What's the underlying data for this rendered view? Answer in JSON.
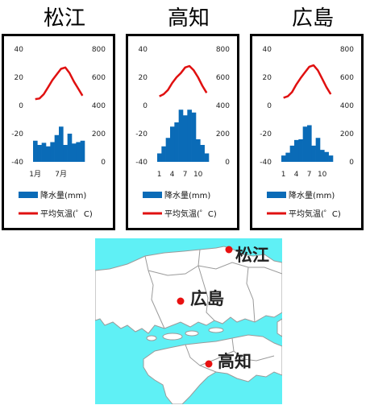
{
  "chart_data": [
    {
      "type": "bar+line",
      "title": "松江",
      "categories": [
        "1",
        "2",
        "3",
        "4",
        "5",
        "6",
        "7",
        "8",
        "9",
        "10",
        "11",
        "12"
      ],
      "x_tick_labels": [
        "1月",
        "7月"
      ],
      "series": [
        {
          "name": "降水量(mm)",
          "type": "bar",
          "axis": "right",
          "values": [
            150,
            120,
            135,
            110,
            140,
            190,
            250,
            120,
            200,
            130,
            140,
            150
          ]
        },
        {
          "name": "平均気温(゜C)",
          "type": "line",
          "axis": "left",
          "values": [
            4.5,
            5,
            8,
            13,
            18,
            22,
            26,
            27,
            23,
            17,
            12,
            7
          ]
        }
      ],
      "y_left": {
        "ticks": [
          40,
          20,
          0,
          -20,
          -40
        ],
        "range": [
          -40,
          40
        ]
      },
      "y_right": {
        "ticks": [
          800,
          600,
          400,
          200,
          0
        ],
        "range": [
          0,
          800
        ]
      },
      "legend": [
        "降水量(mm)",
        "平均気温(゜C)"
      ],
      "legend_position": "bottom"
    },
    {
      "type": "bar+line",
      "title": "高知",
      "categories": [
        "1",
        "2",
        "3",
        "4",
        "5",
        "6",
        "7",
        "8",
        "9",
        "10",
        "11",
        "12"
      ],
      "x_tick_labels": [
        "1",
        "4",
        "7",
        "10"
      ],
      "series": [
        {
          "name": "降水量(mm)",
          "type": "bar",
          "axis": "right",
          "values": [
            60,
            110,
            170,
            250,
            280,
            370,
            330,
            370,
            350,
            160,
            120,
            60
          ]
        },
        {
          "name": "平均気温(゜C)",
          "type": "line",
          "axis": "left",
          "values": [
            6.5,
            8,
            11,
            16,
            20,
            23,
            27,
            28,
            25,
            20,
            14,
            9
          ]
        }
      ],
      "y_left": {
        "ticks": [
          40,
          20,
          0,
          -20,
          -40
        ],
        "range": [
          -40,
          40
        ]
      },
      "y_right": {
        "ticks": [
          800,
          600,
          400,
          200,
          0
        ],
        "range": [
          0,
          800
        ]
      },
      "legend": [
        "降水量(mm)",
        "平均気温(゜C)"
      ],
      "legend_position": "bottom"
    },
    {
      "type": "bar+line",
      "title": "広島",
      "categories": [
        "1",
        "2",
        "3",
        "4",
        "5",
        "6",
        "7",
        "8",
        "9",
        "10",
        "11",
        "12"
      ],
      "x_tick_labels": [
        "1",
        "4",
        "7",
        "10"
      ],
      "series": [
        {
          "name": "降水量(mm)",
          "type": "bar",
          "axis": "right",
          "values": [
            45,
            65,
            115,
            155,
            160,
            250,
            260,
            115,
            170,
            85,
            70,
            45
          ]
        },
        {
          "name": "平均気温(゜C)",
          "type": "line",
          "axis": "left",
          "values": [
            5.5,
            6.5,
            9.5,
            15,
            19.5,
            23.5,
            27.5,
            28.5,
            25,
            19,
            13,
            8
          ]
        }
      ],
      "y_left": {
        "ticks": [
          40,
          20,
          0,
          -20,
          -40
        ],
        "range": [
          -40,
          40
        ]
      },
      "y_right": {
        "ticks": [
          800,
          600,
          400,
          200,
          0
        ],
        "range": [
          0,
          800
        ]
      },
      "legend": [
        "降水量(mm)",
        "平均気温(゜C)"
      ],
      "legend_position": "bottom"
    }
  ],
  "colors": {
    "bar": "#0a6bb7",
    "line": "#e01010",
    "sea": "#5ff0f5",
    "land": "#ffffff",
    "border": "#9a9a9a",
    "dot": "#e81010"
  },
  "map": {
    "labels": [
      "松江",
      "広島",
      "高知"
    ]
  }
}
